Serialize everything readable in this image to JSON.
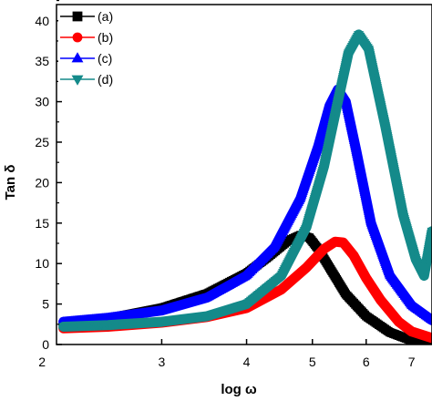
{
  "chart_data": {
    "type": "line",
    "title": "",
    "xlabel": "log ω",
    "ylabel": "Tan δ",
    "xscale": "log",
    "xlim": [
      2.1,
      7.5
    ],
    "ylim": [
      0,
      42
    ],
    "xticks": [
      2,
      3,
      4,
      5,
      6,
      7
    ],
    "yticks": [
      0,
      5,
      10,
      15,
      20,
      25,
      30,
      35,
      40
    ],
    "grid": false,
    "legend_position": "top-left",
    "series": [
      {
        "name": "(a)",
        "color": "#000000",
        "marker": "square",
        "x": [
          2.15,
          2.5,
          3.0,
          3.5,
          4.0,
          4.3,
          4.6,
          4.8,
          4.95,
          5.1,
          5.3,
          5.6,
          6.0,
          6.5,
          7.0,
          7.5
        ],
        "y": [
          2.5,
          3.2,
          4.5,
          6.3,
          8.8,
          10.8,
          12.8,
          13.5,
          13.2,
          11.8,
          9.5,
          6.2,
          3.5,
          1.5,
          0.5,
          0.1
        ]
      },
      {
        "name": "(b)",
        "color": "#ff0000",
        "marker": "circle",
        "x": [
          2.15,
          2.5,
          3.0,
          3.5,
          4.0,
          4.5,
          4.9,
          5.2,
          5.4,
          5.55,
          5.75,
          6.0,
          6.3,
          6.7,
          7.0,
          7.5
        ],
        "y": [
          2.0,
          2.2,
          2.7,
          3.4,
          4.5,
          6.8,
          9.5,
          11.8,
          12.7,
          12.6,
          11.0,
          8.2,
          5.5,
          2.8,
          1.6,
          0.8
        ]
      },
      {
        "name": "(c)",
        "color": "#0000ff",
        "marker": "triangle-up",
        "x": [
          2.15,
          2.5,
          3.0,
          3.5,
          4.0,
          4.4,
          4.8,
          5.1,
          5.3,
          5.45,
          5.6,
          5.8,
          6.1,
          6.5,
          7.0,
          7.5
        ],
        "y": [
          2.8,
          3.3,
          4.2,
          5.8,
          8.5,
          12.0,
          18.0,
          24.5,
          29.5,
          31.5,
          30.0,
          24.0,
          15.0,
          8.5,
          4.8,
          3.0
        ]
      },
      {
        "name": "(d)",
        "color": "#148a8a",
        "marker": "triangle-down",
        "x": [
          2.15,
          2.5,
          3.0,
          3.5,
          4.0,
          4.5,
          4.9,
          5.2,
          5.45,
          5.65,
          5.85,
          6.05,
          6.4,
          6.8,
          7.1,
          7.3,
          7.5
        ],
        "y": [
          2.2,
          2.4,
          2.8,
          3.5,
          5.0,
          8.5,
          14.5,
          22.0,
          30.0,
          36.0,
          38.3,
          36.5,
          27.0,
          16.0,
          10.5,
          8.5,
          14.0
        ]
      }
    ]
  }
}
